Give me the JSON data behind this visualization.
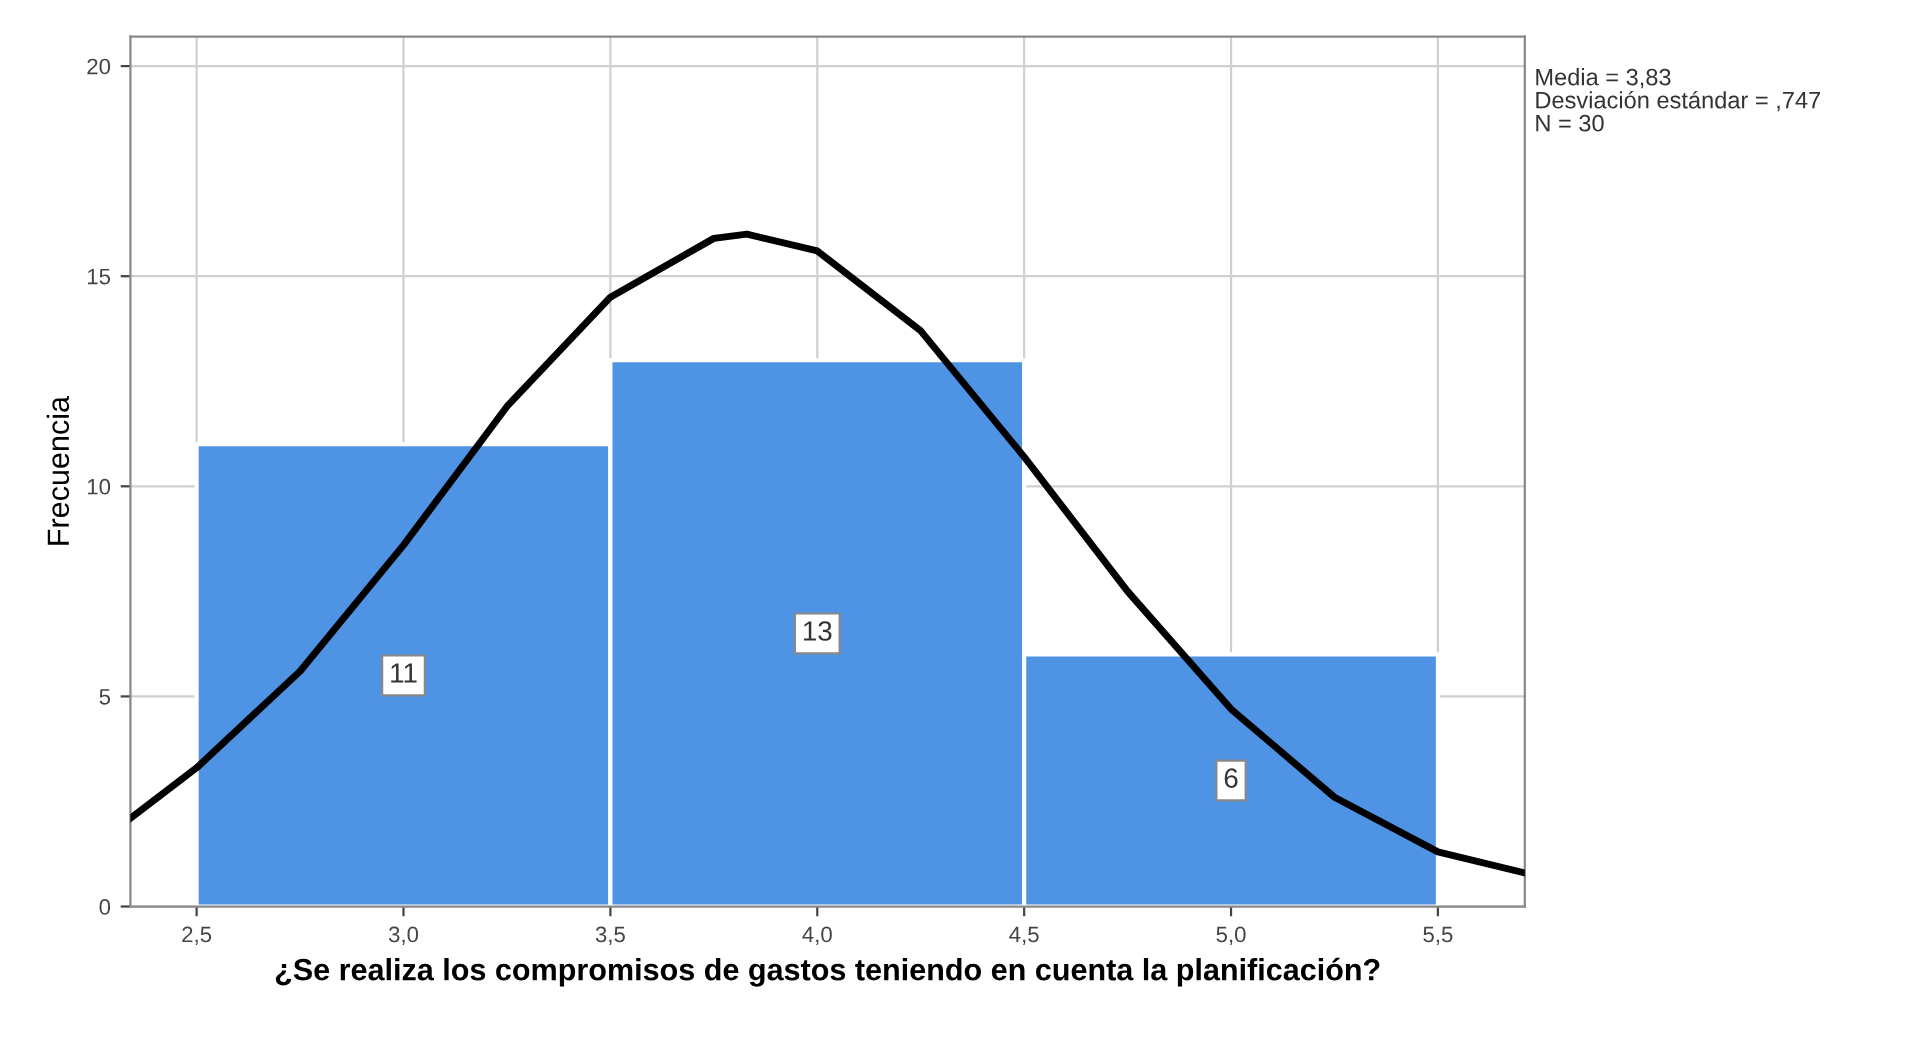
{
  "chart_data": {
    "type": "histogram",
    "xlabel": "¿Se realiza los compromisos de gastos teniendo en cuenta la planificación?",
    "ylabel": "Frecuencia",
    "bins": [
      2.5,
      3.5,
      4.5,
      5.5
    ],
    "series": [
      {
        "color": "#4f93e4",
        "values": [
          11,
          13,
          6
        ],
        "value_labels": [
          "11",
          "13",
          "6"
        ]
      },
      {
        "type": "line",
        "color": "#000000",
        "x": [
          2.34,
          2.5,
          2.75,
          3.0,
          3.25,
          3.5,
          3.75,
          3.83,
          4.0,
          4.25,
          4.5,
          4.75,
          5.0,
          5.25,
          5.5,
          5.71
        ],
        "values": [
          2.1,
          3.3,
          5.6,
          8.6,
          11.9,
          14.5,
          15.9,
          16.0,
          15.6,
          13.7,
          10.7,
          7.5,
          4.7,
          2.6,
          1.3,
          0.8
        ]
      }
    ],
    "xlim": [
      2.34,
      5.71
    ],
    "ylim": [
      0,
      20.7
    ],
    "xticks": [
      {
        "value": 2.5,
        "label": "2,5"
      },
      {
        "value": 3.0,
        "label": "3,0"
      },
      {
        "value": 3.5,
        "label": "3,5"
      },
      {
        "value": 4.0,
        "label": "4,0"
      },
      {
        "value": 4.5,
        "label": "4,5"
      },
      {
        "value": 5.0,
        "label": "5,0"
      },
      {
        "value": 5.5,
        "label": "5,5"
      }
    ],
    "yticks": [
      0,
      5,
      10,
      15,
      20
    ],
    "grid": true,
    "marker": "none",
    "annotations": [
      "Media = 3,83",
      "Desviación estándar = ,747",
      "N = 30"
    ]
  }
}
